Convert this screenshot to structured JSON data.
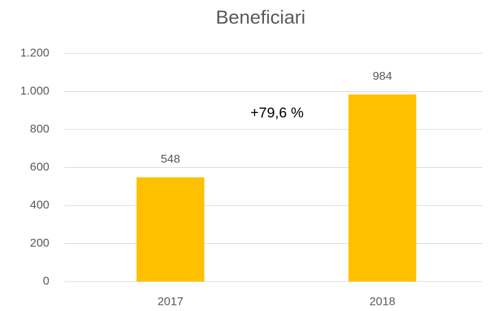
{
  "chart_data": {
    "type": "bar",
    "title": "Beneficiari",
    "categories": [
      "2017",
      "2018"
    ],
    "values": [
      548,
      984
    ],
    "color": "#ffc000",
    "ylim": [
      0,
      1200
    ],
    "yticks": [
      0,
      200,
      400,
      600,
      800,
      {
        "value": 1000,
        "label": "1.000"
      },
      {
        "value": 1200,
        "label": "1.200"
      }
    ],
    "grid": true,
    "annotation": "+79,6 %"
  }
}
